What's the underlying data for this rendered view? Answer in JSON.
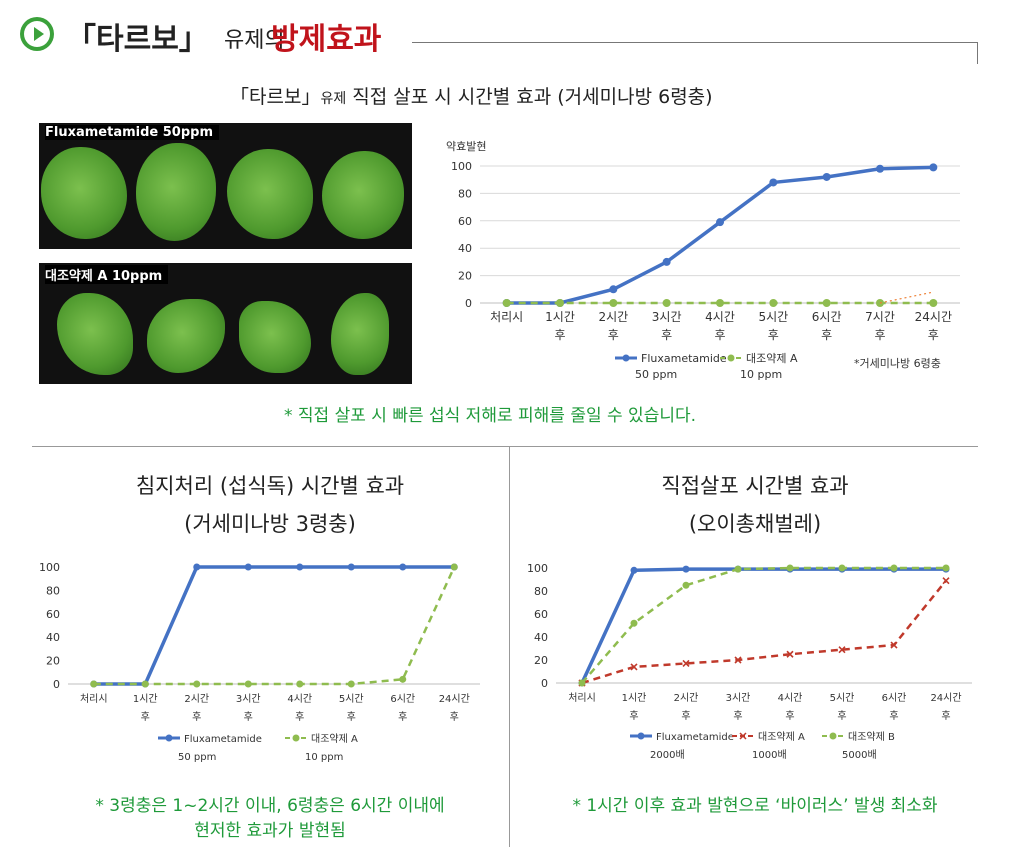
{
  "header": {
    "title_part1": "「타르보」",
    "title_part2": "유제의",
    "title_part3": "방제효과",
    "accent_color": "#c0131b",
    "icon": "play-circle-icon"
  },
  "top_section": {
    "subtitle_main": "「타르보」",
    "subtitle_small": "유제",
    "subtitle_rest": " 직접 살포 시 시간별 효과 (거세미나방 6령충)",
    "photo_label_1": "Fluxametamide  50ppm",
    "photo_label_2": "대조약제  A  10ppm",
    "note": "* 직접 살포 시 빠른 섭식 저해로 피해를 줄일 수 있습니다."
  },
  "left_section": {
    "title_line1": "침지처리 (섭식독) 시간별 효과",
    "title_line2": "(거세미나방 3령충)",
    "note_line1": "* 3령충은 1~2시간 이내, 6령충은 6시간 이내에",
    "note_line2": "현저한 효과가 발현됨"
  },
  "right_section": {
    "title_line1": "직접살포 시간별 효과",
    "title_line2": "(오이총채벌레)",
    "note": "* 1시간 이후 효과 발현으로 ‘바이러스’ 발생 최소화"
  },
  "chart_data": [
    {
      "type": "line",
      "ylabel": "약효발현",
      "ylim": [
        0,
        100
      ],
      "yticks": [
        0,
        20,
        40,
        60,
        80,
        100
      ],
      "categories": [
        [
          "처리시"
        ],
        [
          "1시간",
          "후"
        ],
        [
          "2시간",
          "후"
        ],
        [
          "3시간",
          "후"
        ],
        [
          "4시간",
          "후"
        ],
        [
          "5시간",
          "후"
        ],
        [
          "6시간",
          "후"
        ],
        [
          "7시간",
          "후"
        ],
        [
          "24시간",
          "후"
        ]
      ],
      "grid": true,
      "legend_position": "bottom",
      "annotation": "*거세미나방 6령충",
      "series": [
        {
          "name": "Fluxametamide",
          "sub": "50  ppm",
          "color": "#4472c4",
          "style": "solid",
          "marker": "circle",
          "values": [
            0,
            0,
            10,
            30,
            59,
            88,
            92,
            98,
            99
          ]
        },
        {
          "name": "대조약제 A",
          "sub": "10  ppm",
          "color": "#8fbc4f",
          "style": "dashed",
          "marker": "circle",
          "values": [
            0,
            0,
            0,
            0,
            0,
            0,
            0,
            0,
            0
          ]
        },
        {
          "name": "",
          "color": "#ed7d31",
          "style": "dotted",
          "marker": "none",
          "values": [
            null,
            null,
            null,
            null,
            null,
            null,
            null,
            0,
            8
          ]
        }
      ]
    },
    {
      "type": "line",
      "ylim": [
        0,
        100
      ],
      "yticks": [
        0,
        20,
        40,
        60,
        80,
        100
      ],
      "categories": [
        [
          "처리시"
        ],
        [
          "1시간",
          "후"
        ],
        [
          "2시간",
          "후"
        ],
        [
          "3시간",
          "후"
        ],
        [
          "4시간",
          "후"
        ],
        [
          "5시간",
          "후"
        ],
        [
          "6시간",
          "후"
        ],
        [
          "24시간",
          "후"
        ]
      ],
      "grid": false,
      "legend_position": "bottom",
      "series": [
        {
          "name": "Fluxametamide",
          "sub": "50 ppm",
          "color": "#4472c4",
          "style": "solid",
          "marker": "circle",
          "values": [
            0,
            0,
            100,
            100,
            100,
            100,
            100,
            100
          ]
        },
        {
          "name": "대조약제 A",
          "sub": "10 ppm",
          "color": "#8fbc4f",
          "style": "dashed",
          "marker": "circle",
          "values": [
            0,
            0,
            0,
            0,
            0,
            0,
            4,
            100
          ]
        }
      ]
    },
    {
      "type": "line",
      "ylim": [
        0,
        100
      ],
      "yticks": [
        0,
        20,
        40,
        60,
        80,
        100
      ],
      "categories": [
        [
          "처리시"
        ],
        [
          "1시간",
          "후"
        ],
        [
          "2시간",
          "후"
        ],
        [
          "3시간",
          "후"
        ],
        [
          "4시간",
          "후"
        ],
        [
          "5시간",
          "후"
        ],
        [
          "6시간",
          "후"
        ],
        [
          "24시간",
          "후"
        ]
      ],
      "grid": false,
      "legend_position": "bottom",
      "series": [
        {
          "name": "Fluxametamide",
          "sub": "2000배",
          "color": "#4472c4",
          "style": "solid",
          "marker": "circle",
          "values": [
            0,
            98,
            99,
            99,
            99,
            99,
            99,
            99
          ]
        },
        {
          "name": "대조약제 A",
          "sub": "1000배",
          "color": "#c0392b",
          "style": "dashed",
          "marker": "cross",
          "values": [
            0,
            14,
            17,
            20,
            25,
            29,
            33,
            89
          ]
        },
        {
          "name": "대조약제 B",
          "sub": "5000배",
          "color": "#8fbc4f",
          "style": "dashed",
          "marker": "circle",
          "values": [
            0,
            52,
            85,
            99,
            100,
            100,
            100,
            100
          ]
        }
      ]
    }
  ]
}
